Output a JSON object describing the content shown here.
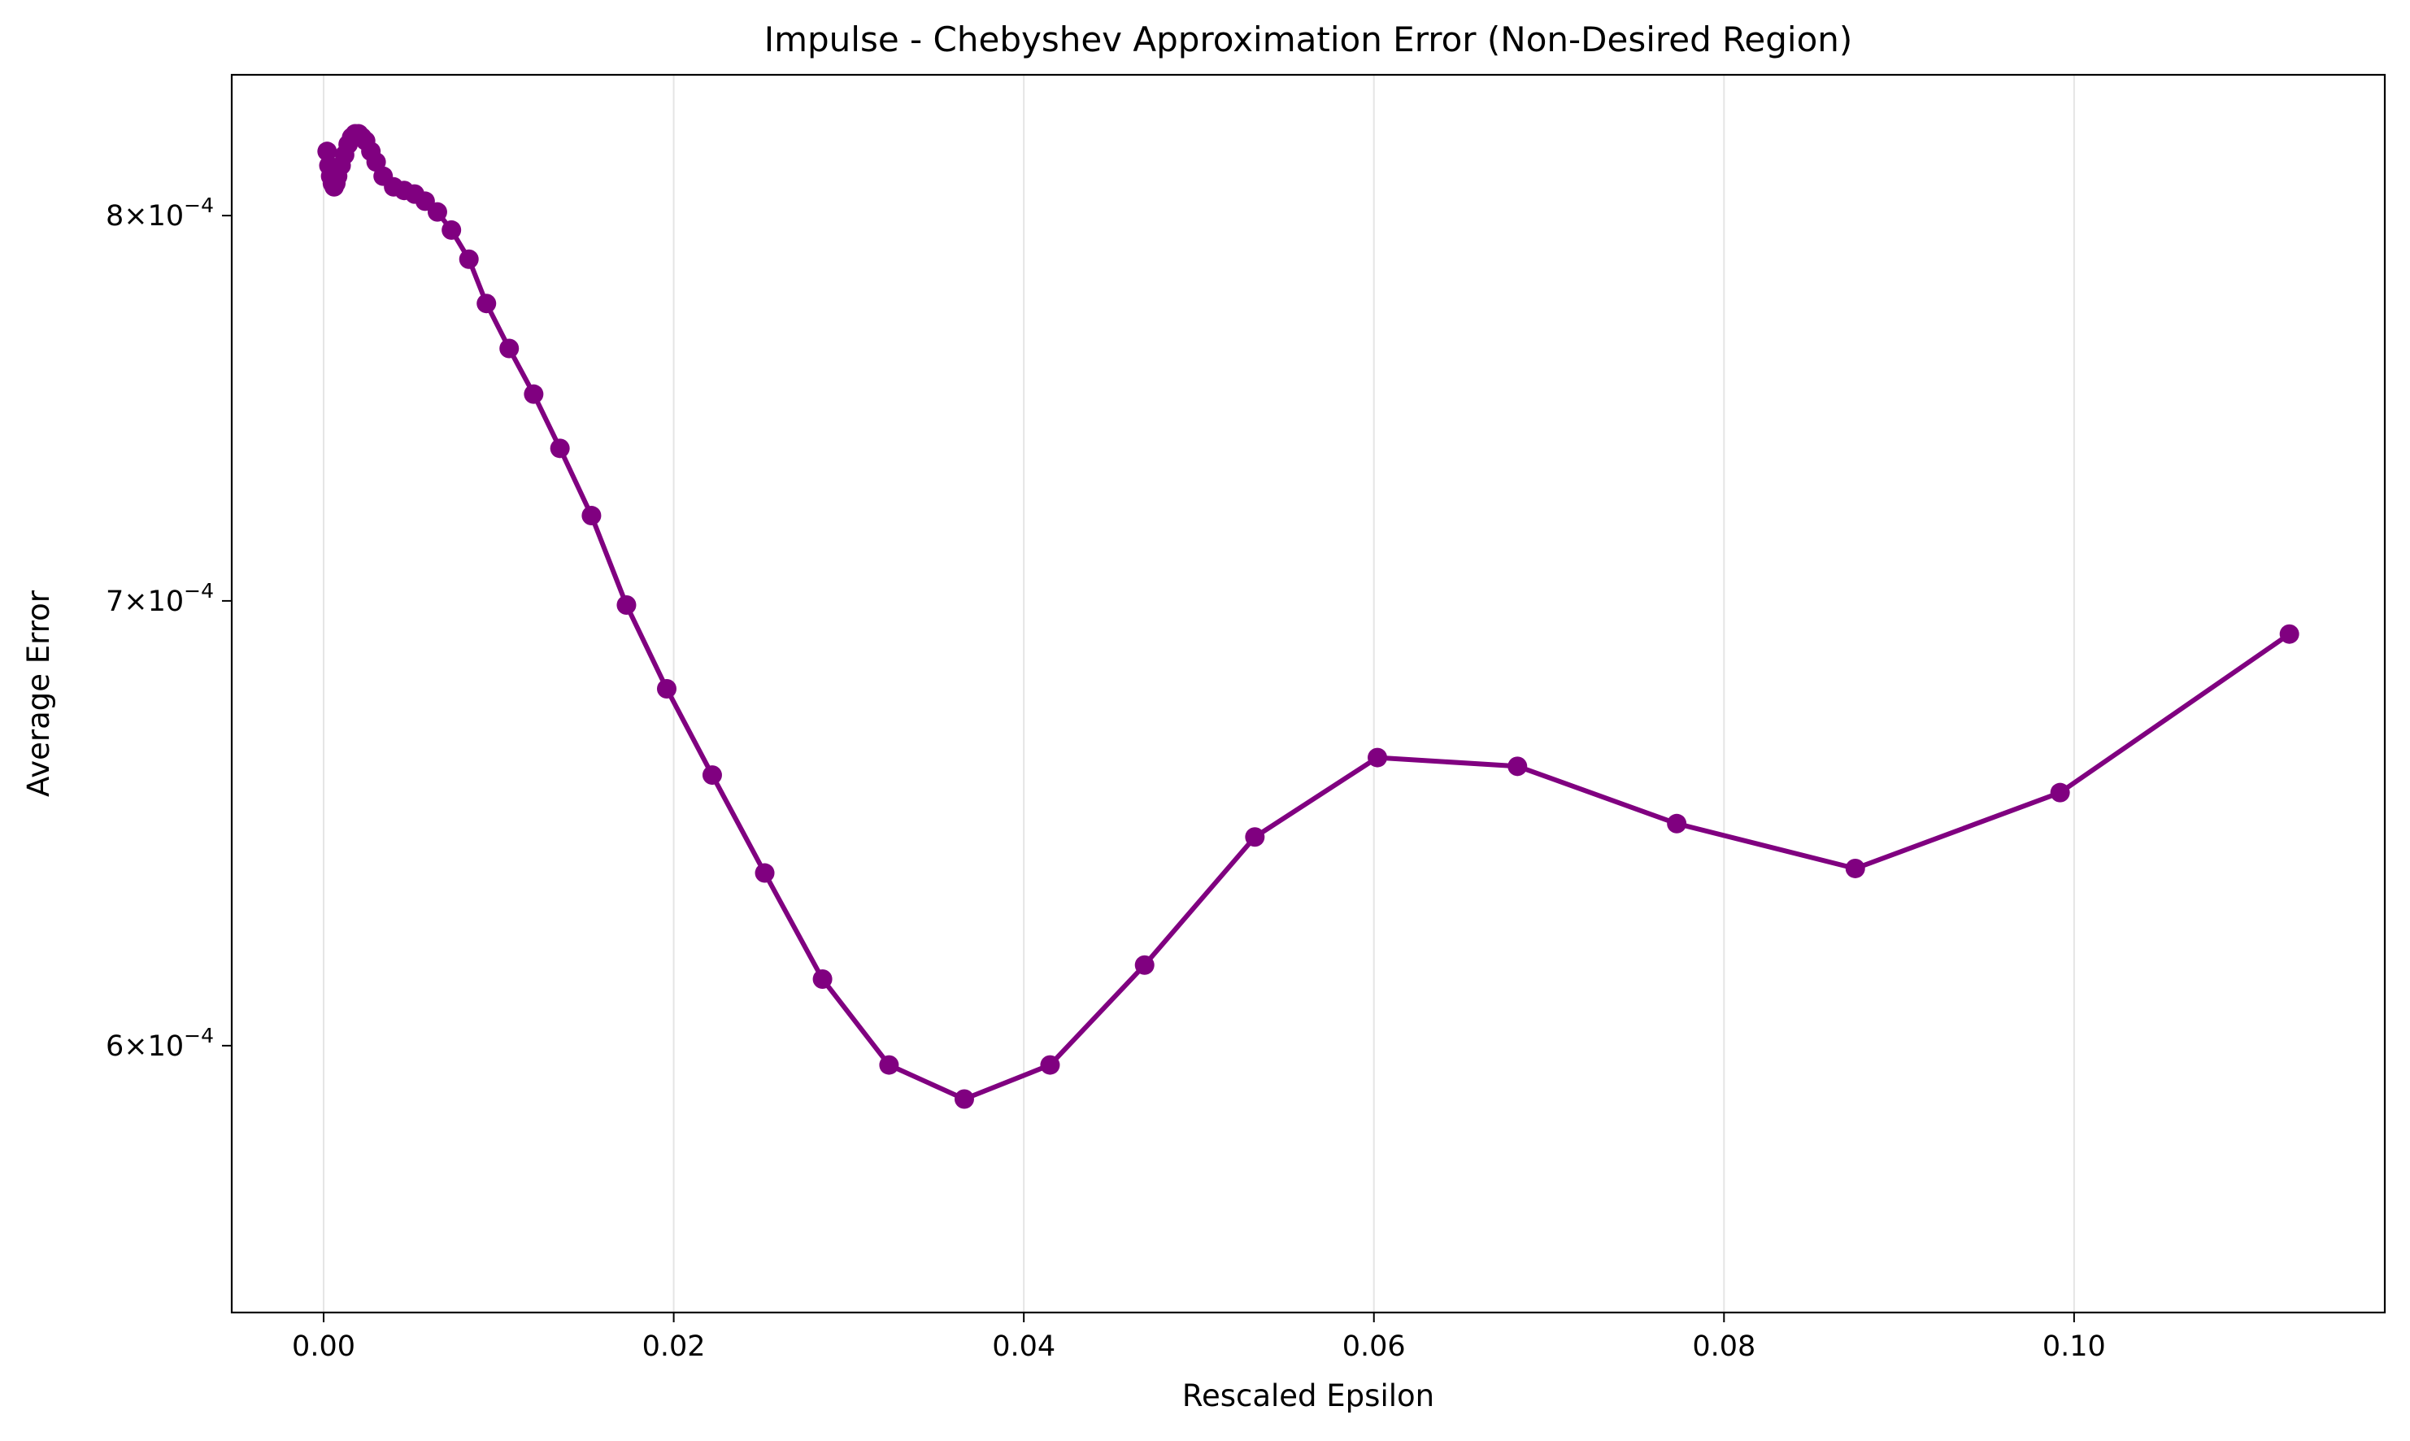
{
  "chart_data": {
    "type": "line",
    "title": "Impulse - Chebyshev Approximation Error (Non-Desired Region)",
    "xlabel": "Rescaled Epsilon",
    "ylabel": "Average Error",
    "xlim": [
      -0.00525,
      0.11775
    ],
    "ylim": [
      0.000547,
      0.00084
    ],
    "yscale": "log",
    "grid": "x-axis only",
    "line_color": "#800080",
    "grid_color": "#e5e5e5",
    "xticks": [
      {
        "value": 0.0,
        "label": "0.00"
      },
      {
        "value": 0.02,
        "label": "0.02"
      },
      {
        "value": 0.04,
        "label": "0.04"
      },
      {
        "value": 0.06,
        "label": "0.06"
      },
      {
        "value": 0.08,
        "label": "0.08"
      },
      {
        "value": 0.1,
        "label": "0.10"
      }
    ],
    "yticks": [
      {
        "value": 0.0006,
        "mantissa": "6",
        "exponent": "−4"
      },
      {
        "value": 0.0007,
        "mantissa": "7",
        "exponent": "−4"
      },
      {
        "value": 0.0008,
        "mantissa": "8",
        "exponent": "−4"
      }
    ],
    "series": [
      {
        "x": [
          0.0002,
          0.0003,
          0.0004,
          0.0005,
          0.0006,
          0.0007,
          0.0008,
          0.001,
          0.0012,
          0.0014,
          0.0016,
          0.0018,
          0.002,
          0.0022,
          0.0024,
          0.0027,
          0.003,
          0.0034,
          0.004,
          0.0046,
          0.0052,
          0.0058,
          0.0065,
          0.0073,
          0.0083,
          0.0093,
          0.0106,
          0.012,
          0.0135,
          0.0153,
          0.0173,
          0.0196,
          0.0222,
          0.0252,
          0.0285,
          0.0323,
          0.0366,
          0.0415,
          0.0469,
          0.0532,
          0.0602,
          0.0682,
          0.0773,
          0.0875,
          0.0992,
          0.1123
        ],
        "y": [
          0.000818,
          0.000814,
          0.000811,
          0.000809,
          0.000808,
          0.000809,
          0.000811,
          0.000814,
          0.000817,
          0.00082,
          0.000822,
          0.000823,
          0.000823,
          0.000822,
          0.000821,
          0.000818,
          0.000815,
          0.000811,
          0.000808,
          0.000807,
          0.000806,
          0.000804,
          0.000801,
          0.000796,
          0.000788,
          0.000776,
          0.000764,
          0.000752,
          0.000738,
          0.000721,
          0.000699,
          0.000679,
          0.000659,
          0.000637,
          0.000614,
          0.000596,
          0.000589,
          0.000596,
          0.000617,
          0.000645,
          0.000663,
          0.000661,
          0.000648,
          0.000638,
          0.000655,
          0.000692
        ]
      }
    ]
  }
}
